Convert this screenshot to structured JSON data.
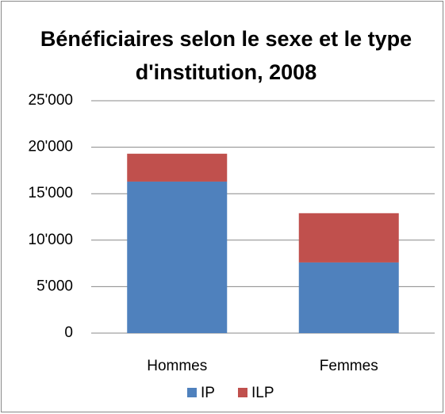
{
  "chart_data": {
    "type": "stacked-bar",
    "title": "Bénéficiaires selon le sexe et le type d'institution, 2008",
    "categories": [
      "Hommes",
      "Femmes"
    ],
    "series": [
      {
        "name": "IP",
        "color": "#4f81bd",
        "values": [
          16300,
          7600
        ]
      },
      {
        "name": "ILP",
        "color": "#c0504d",
        "values": [
          3000,
          5300
        ]
      }
    ],
    "ylim": [
      0,
      25000
    ],
    "yticks": [
      0,
      {
        "value": 5000,
        "label": "5'000"
      },
      {
        "value": 10000,
        "label": "10'000"
      },
      {
        "value": 15000,
        "label": "15'000"
      },
      {
        "value": 20000,
        "label": "20'000"
      },
      {
        "value": 25000,
        "label": "25'000"
      }
    ],
    "grid": true,
    "legend": "bottom"
  }
}
